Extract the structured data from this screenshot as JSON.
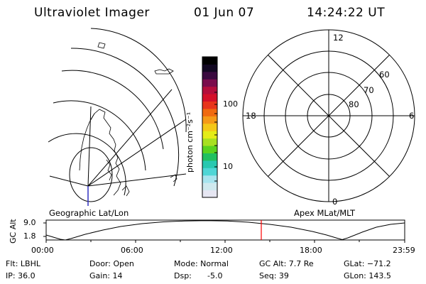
{
  "header": {
    "title": "Ultraviolet Imager",
    "date": "01 Jun 07",
    "time": "14:24:22 UT"
  },
  "left_panel": {
    "caption": "Geographic Lat/Lon"
  },
  "colorbar": {
    "unit_label": "photon cm⁻²s⁻¹",
    "tick_100": "100",
    "tick_10": "10",
    "colors": [
      "#e6e6f2",
      "#cfe9ee",
      "#a7e4ee",
      "#4fd6d6",
      "#28c8b0",
      "#20c060",
      "#5ad31e",
      "#a8e020",
      "#e4ec18",
      "#f4c818",
      "#f59a18",
      "#f06a10",
      "#e8351c",
      "#d4102a",
      "#b40e3c",
      "#7a0c4c",
      "#3a0a40",
      "#120822",
      "#000000"
    ]
  },
  "polar_panel": {
    "caption": "Apex MLat/MLT",
    "mlt_top": "12",
    "mlt_left": "18",
    "mlt_right": "6",
    "mlt_bottom": "0",
    "ring_60": "60",
    "ring_70": "70",
    "ring_80": "80"
  },
  "altitude_plot": {
    "ylabel": "GC Alt",
    "y_top": "9.0",
    "y_bottom": "1.8",
    "x_ticks": [
      "00:00",
      "06:00",
      "12:00",
      "18:00",
      "23:59"
    ],
    "current_time_color": "#ff0000"
  },
  "status": {
    "flt": "Flt: LBHL",
    "ip": "IP: 36.0",
    "door": "Door: Open",
    "gain": "Gain: 14",
    "mode": "Mode: Normal",
    "dsp_label": "Dsp:",
    "dsp_value": "-5.0",
    "gc_alt": "GC Alt: 7.7 Re",
    "seq": "Seq: 39",
    "glat": "GLat: −71.2",
    "glon": "GLon: 143.5"
  }
}
